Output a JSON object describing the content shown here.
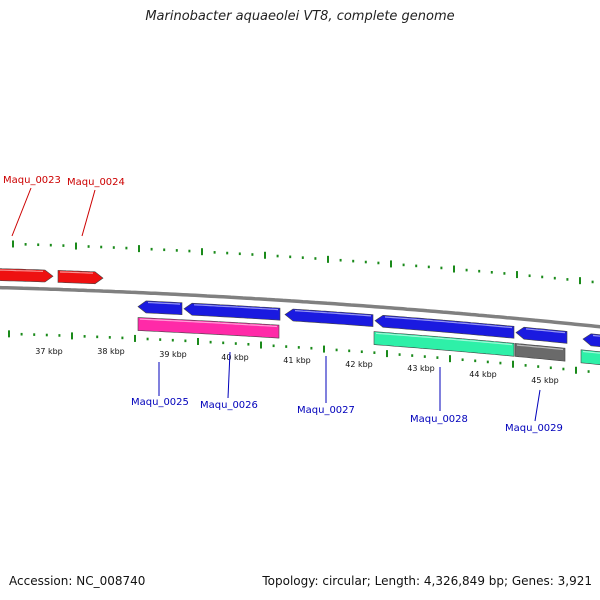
{
  "title": "Marinobacter aquaeolei VT8, complete genome",
  "footer": {
    "accession": "Accession: NC_008740",
    "summary": "Topology: circular; Length: 4,326,849 bp; Genes: 3,921"
  },
  "colors": {
    "forward_cds": "#ee1111",
    "reverse_cds": "#1a1ae0",
    "rna_magenta": "#ff2aa8",
    "rna_teal": "#2ef0a8",
    "rna_grey": "#6a6a6a",
    "backbone": "#808080",
    "ticks": "#1a8a1a",
    "label_forward": "#cc0000",
    "label_reverse": "#0000bb"
  },
  "scale_labels": [
    "37 kbp",
    "38 kbp",
    "39 kbp",
    "40 kbp",
    "41 kbp",
    "42 kbp",
    "43 kbp",
    "44 kbp",
    "45 kbp"
  ],
  "genes": [
    {
      "id": "Maqu_0023",
      "strand": "+"
    },
    {
      "id": "Maqu_0024",
      "strand": "+"
    },
    {
      "id": "Maqu_0025",
      "strand": "-"
    },
    {
      "id": "Maqu_0026",
      "strand": "-"
    },
    {
      "id": "Maqu_0027",
      "strand": "-"
    },
    {
      "id": "Maqu_0028",
      "strand": "-"
    },
    {
      "id": "Maqu_0029",
      "strand": "-"
    }
  ]
}
